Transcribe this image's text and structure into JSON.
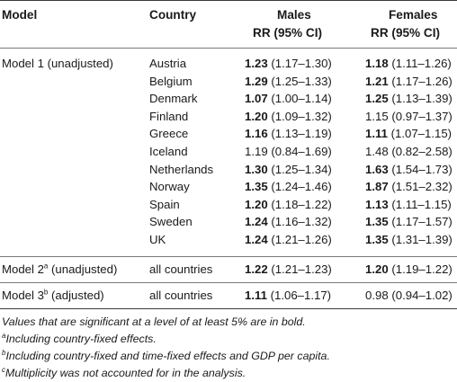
{
  "header": {
    "model": "Model",
    "country": "Country",
    "males_line1": "Males",
    "males_line2": "RR (95% CI)",
    "females_line1": "Females",
    "females_line2": "RR (95% CI)"
  },
  "model1": {
    "label": "Model 1 (unadjusted)",
    "rows": [
      {
        "country": "Austria",
        "m_rr": "1.23",
        "m_ci": "(1.17–1.30)",
        "m_bold": true,
        "f_rr": "1.18",
        "f_ci": "(1.11–1.26)",
        "f_bold": true
      },
      {
        "country": "Belgium",
        "m_rr": "1.29",
        "m_ci": "(1.25–1.33)",
        "m_bold": true,
        "f_rr": "1.21",
        "f_ci": "(1.17–1.26)",
        "f_bold": true
      },
      {
        "country": "Denmark",
        "m_rr": "1.07",
        "m_ci": "(1.00–1.14)",
        "m_bold": true,
        "f_rr": "1.25",
        "f_ci": "(1.13–1.39)",
        "f_bold": true
      },
      {
        "country": "Finland",
        "m_rr": "1.20",
        "m_ci": "(1.09–1.32)",
        "m_bold": true,
        "f_rr": "1.15",
        "f_ci": "(0.97–1.37)",
        "f_bold": false
      },
      {
        "country": "Greece",
        "m_rr": "1.16",
        "m_ci": "(1.13–1.19)",
        "m_bold": true,
        "f_rr": "1.11",
        "f_ci": "(1.07–1.15)",
        "f_bold": true
      },
      {
        "country": "Iceland",
        "m_rr": "1.19",
        "m_ci": "(0.84–1.69)",
        "m_bold": false,
        "f_rr": "1.48",
        "f_ci": "(0.82–2.58)",
        "f_bold": false
      },
      {
        "country": "Netherlands",
        "m_rr": "1.30",
        "m_ci": "(1.25–1.34)",
        "m_bold": true,
        "f_rr": "1.63",
        "f_ci": "(1.54–1.73)",
        "f_bold": true
      },
      {
        "country": "Norway",
        "m_rr": "1.35",
        "m_ci": "(1.24–1.46)",
        "m_bold": true,
        "f_rr": "1.87",
        "f_ci": "(1.51–2.32)",
        "f_bold": true
      },
      {
        "country": "Spain",
        "m_rr": "1.20",
        "m_ci": "(1.18–1.22)",
        "m_bold": true,
        "f_rr": "1.13",
        "f_ci": "(1.11–1.15)",
        "f_bold": true
      },
      {
        "country": "Sweden",
        "m_rr": "1.24",
        "m_ci": "(1.16–1.32)",
        "m_bold": true,
        "f_rr": "1.35",
        "f_ci": "(1.17–1.57)",
        "f_bold": true
      },
      {
        "country": "UK",
        "m_rr": "1.24",
        "m_ci": "(1.21–1.26)",
        "m_bold": true,
        "f_rr": "1.35",
        "f_ci": "(1.31–1.39)",
        "f_bold": true
      }
    ]
  },
  "model2": {
    "label": "Model 2",
    "sup": "a",
    "label_suffix": " (unadjusted)",
    "country": "all countries",
    "m_rr": "1.22",
    "m_ci": "(1.21–1.23)",
    "m_bold": true,
    "f_rr": "1.20",
    "f_ci": "(1.19–1.22)",
    "f_bold": true
  },
  "model3": {
    "label": "Model 3",
    "sup": "b",
    "label_suffix": " (adjusted)",
    "country": "all countries",
    "m_rr": "1.11",
    "m_ci": "(1.06–1.17)",
    "m_bold": true,
    "f_rr": "0.98",
    "f_ci": "(0.94–1.02)",
    "f_bold": false
  },
  "notes": {
    "n0": "Values that are significant at a level of at least 5% are in bold.",
    "n1_sup": "a",
    "n1": "Including country-fixed effects.",
    "n2_sup": "b",
    "n2": "Including country-fixed and time-fixed effects and GDP per capita.",
    "n3_sup": "c",
    "n3": "Multiplicity was not accounted for in the analysis."
  }
}
